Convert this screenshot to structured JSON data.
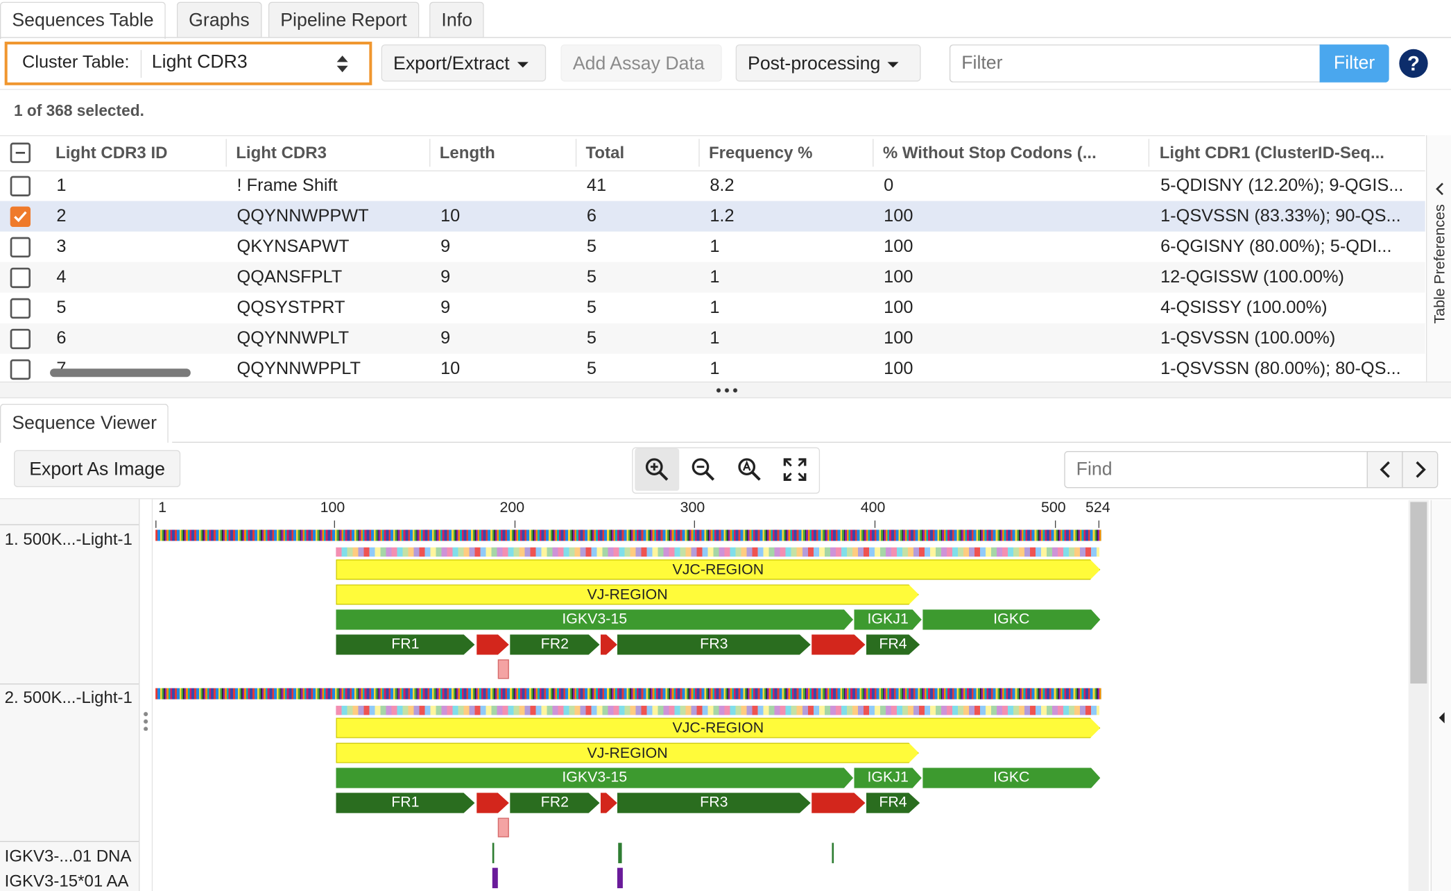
{
  "tabs": [
    "Sequences Table",
    "Graphs",
    "Pipeline Report",
    "Info"
  ],
  "toolbar": {
    "cluster_label": "Cluster Table:",
    "cluster_value": "Light CDR3",
    "export_extract": "Export/Extract",
    "add_assay": "Add Assay Data",
    "post_processing": "Post-processing",
    "filter_placeholder": "Filter",
    "filter_button": "Filter",
    "help": "?"
  },
  "selection_status": "1 of 368 selected.",
  "table": {
    "columns": [
      "Light CDR3 ID",
      "Light CDR3",
      "Length",
      "Total",
      "Frequency %",
      "% Without Stop Codons (...",
      "Light CDR1 (ClusterID-Seq..."
    ],
    "rows": [
      {
        "id": "1",
        "cdr3": "! Frame Shift",
        "length": "",
        "total": "41",
        "freq": "8.2",
        "nostop": "0",
        "cdr1": "5-QDISNY (12.20%); 9-QGIS...",
        "checked": false
      },
      {
        "id": "2",
        "cdr3": "QQYNNWPPWT",
        "length": "10",
        "total": "6",
        "freq": "1.2",
        "nostop": "100",
        "cdr1": "1-QSVSSN (83.33%); 90-QS...",
        "checked": true
      },
      {
        "id": "3",
        "cdr3": "QKYNSAPWT",
        "length": "9",
        "total": "5",
        "freq": "1",
        "nostop": "100",
        "cdr1": "6-QGISNY (80.00%); 5-QDI...",
        "checked": false
      },
      {
        "id": "4",
        "cdr3": "QQANSFPLT",
        "length": "9",
        "total": "5",
        "freq": "1",
        "nostop": "100",
        "cdr1": "12-QGISSW (100.00%)",
        "checked": false
      },
      {
        "id": "5",
        "cdr3": "QQSYSTPRT",
        "length": "9",
        "total": "5",
        "freq": "1",
        "nostop": "100",
        "cdr1": "4-QSISSY (100.00%)",
        "checked": false
      },
      {
        "id": "6",
        "cdr3": "QQYNNWPLT",
        "length": "9",
        "total": "5",
        "freq": "1",
        "nostop": "100",
        "cdr1": "1-QSVSSN (100.00%)",
        "checked": false
      },
      {
        "id": "7",
        "cdr3": "QQYNNWPPLT",
        "length": "10",
        "total": "5",
        "freq": "1",
        "nostop": "100",
        "cdr1": "1-QSVSSN (80.00%); 80-QS...",
        "checked": false
      }
    ],
    "side_panel": "Table Preferences"
  },
  "viewer": {
    "tab": "Sequence Viewer",
    "export_image": "Export As Image",
    "find_placeholder": "Find",
    "ruler": [
      "1",
      "100",
      "200",
      "300",
      "400",
      "500",
      "524"
    ],
    "tracks": [
      "1. 500K...-Light-1",
      "2. 500K...-Light-1",
      "IGKV3-...01 DNA",
      "IGKV3-15*01 AA"
    ],
    "annotations": {
      "vjc": "VJC-REGION",
      "vj": "VJ-REGION",
      "igkv": "IGKV3-15",
      "igkj": "IGKJ1",
      "igkc": "IGKC",
      "fr1": "FR1",
      "fr2": "FR2",
      "fr3": "FR3",
      "fr4": "FR4"
    }
  },
  "colors": {
    "accent_orange": "#f0962e",
    "filter_blue": "#4aa7ee",
    "help_navy": "#0d2d6b",
    "selected_row": "#e2e8f5"
  }
}
